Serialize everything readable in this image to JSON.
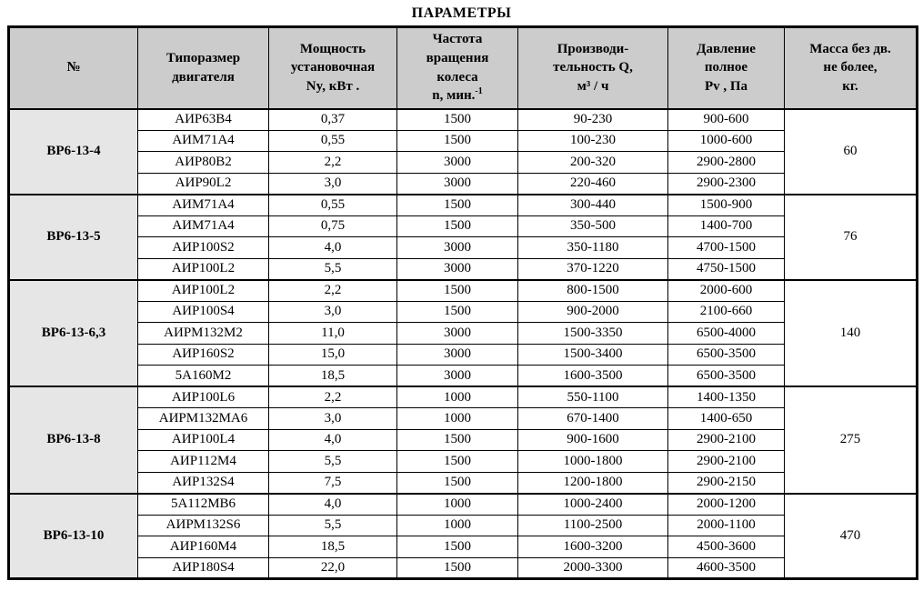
{
  "title": "ПАРАМЕТРЫ",
  "colors": {
    "header_bg": "#cccccc",
    "group_bg": "#e6e6e6",
    "border": "#000000"
  },
  "table": {
    "columns": [
      {
        "id": "num",
        "label": "№"
      },
      {
        "id": "motor",
        "label": "Типоразмер\nдвигателя"
      },
      {
        "id": "power",
        "label": "Мощность\nустановочная\nNy, кВт ."
      },
      {
        "id": "rpm",
        "label": "Частота\nвращения\nколеса\nn, мин.",
        "sup": "-1"
      },
      {
        "id": "flow",
        "label": "Производи-\nтельность Q,\nм³ / ч"
      },
      {
        "id": "pressure",
        "label": "Давление\nполное\nPv , Па"
      },
      {
        "id": "mass",
        "label": "Масса без дв.\nне более,\nкг."
      }
    ],
    "groups": [
      {
        "label": "ВР6-13-4",
        "mass": "60",
        "rows": [
          [
            "АИР63В4",
            "0,37",
            "1500",
            "90-230",
            "900-600"
          ],
          [
            "АИМ71А4",
            "0,55",
            "1500",
            "100-230",
            "1000-600"
          ],
          [
            "АИР80В2",
            "2,2",
            "3000",
            "200-320",
            "2900-2800"
          ],
          [
            "АИР90L2",
            "3,0",
            "3000",
            "220-460",
            "2900-2300"
          ]
        ]
      },
      {
        "label": "ВР6-13-5",
        "mass": "76",
        "rows": [
          [
            "АИМ71А4",
            "0,55",
            "1500",
            "300-440",
            "1500-900"
          ],
          [
            "АИМ71А4",
            "0,75",
            "1500",
            "350-500",
            "1400-700"
          ],
          [
            "АИР100S2",
            "4,0",
            "3000",
            "350-1180",
            "4700-1500"
          ],
          [
            "АИР100L2",
            "5,5",
            "3000",
            "370-1220",
            "4750-1500"
          ]
        ]
      },
      {
        "label": "ВР6-13-6,3",
        "mass": "140",
        "rows": [
          [
            "АИР100L2",
            "2,2",
            "1500",
            "800-1500",
            "2000-600"
          ],
          [
            "АИР100S4",
            "3,0",
            "1500",
            "900-2000",
            "2100-660"
          ],
          [
            "АИРМ132М2",
            "11,0",
            "3000",
            "1500-3350",
            "6500-4000"
          ],
          [
            "АИР160S2",
            "15,0",
            "3000",
            "1500-3400",
            "6500-3500"
          ],
          [
            "5А160М2",
            "18,5",
            "3000",
            "1600-3500",
            "6500-3500"
          ]
        ]
      },
      {
        "label": "ВР6-13-8",
        "mass": "275",
        "rows": [
          [
            "АИР100L6",
            "2,2",
            "1000",
            "550-1100",
            "1400-1350"
          ],
          [
            "АИРМ132МА6",
            "3,0",
            "1000",
            "670-1400",
            "1400-650"
          ],
          [
            "АИР100L4",
            "4,0",
            "1500",
            "900-1600",
            "2900-2100"
          ],
          [
            "АИР112М4",
            "5,5",
            "1500",
            "1000-1800",
            "2900-2100"
          ],
          [
            "АИР132S4",
            "7,5",
            "1500",
            "1200-1800",
            "2900-2150"
          ]
        ]
      },
      {
        "label": "ВР6-13-10",
        "mass": "470",
        "rows": [
          [
            "5А112МВ6",
            "4,0",
            "1000",
            "1000-2400",
            "2000-1200"
          ],
          [
            "АИРМ132S6",
            "5,5",
            "1000",
            "1100-2500",
            "2000-1100"
          ],
          [
            "АИР160М4",
            "18,5",
            "1500",
            "1600-3200",
            "4500-3600"
          ],
          [
            "АИР180S4",
            "22,0",
            "1500",
            "2000-3300",
            "4600-3500"
          ]
        ]
      }
    ]
  }
}
